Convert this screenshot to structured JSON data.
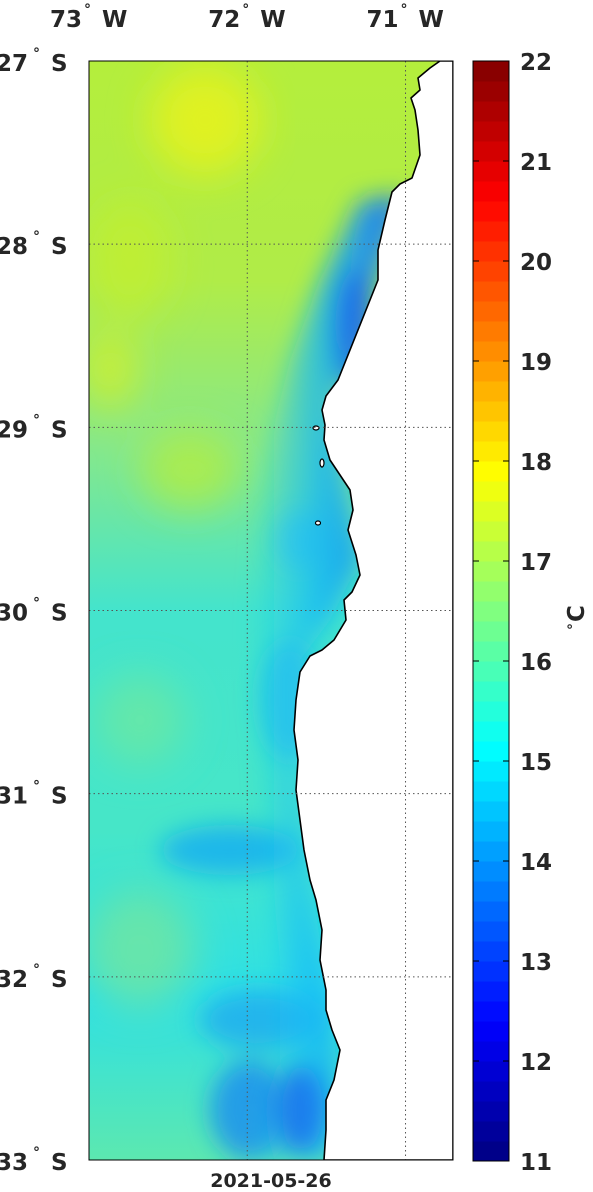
{
  "map": {
    "lon_ticks": [
      {
        "deg": "73",
        "hem": "W",
        "value": -73
      },
      {
        "deg": "72",
        "hem": "W",
        "value": -72
      },
      {
        "deg": "71",
        "hem": "W",
        "value": -71
      }
    ],
    "lat_ticks": [
      {
        "deg": "27",
        "hem": "S",
        "value": -27
      },
      {
        "deg": "28",
        "hem": "S",
        "value": -28
      },
      {
        "deg": "29",
        "hem": "S",
        "value": -29
      },
      {
        "deg": "30",
        "hem": "S",
        "value": -30
      },
      {
        "deg": "31",
        "hem": "S",
        "value": -31
      },
      {
        "deg": "32",
        "hem": "S",
        "value": -32
      },
      {
        "deg": "33",
        "hem": "S",
        "value": -33
      }
    ],
    "date_label": "2021-05-26",
    "variable": "sea surface temperature",
    "land_color": "#ffffff",
    "coastline_color": "#000000",
    "grid": "dotted"
  },
  "colorbar": {
    "min": 11,
    "max": 22,
    "ticks": [
      "22",
      "21",
      "20",
      "19",
      "18",
      "17",
      "16",
      "15",
      "14",
      "13",
      "12",
      "11"
    ],
    "unit_deg": "°",
    "unit_letter": "C",
    "colormap": "jet"
  }
}
